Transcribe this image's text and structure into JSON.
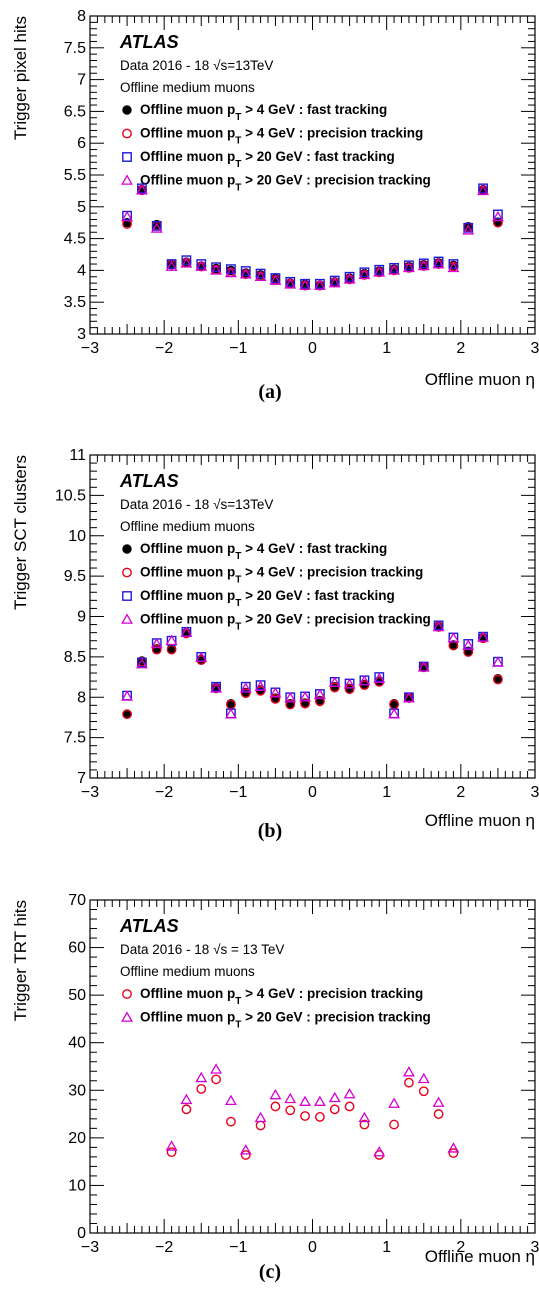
{
  "colors": {
    "black": "#000000",
    "red": "#e8001c",
    "blue": "#1a1ad8",
    "magenta": "#d400d4"
  },
  "chart_data": [
    {
      "type": "scatter",
      "panel": "(a)",
      "atlas_label": "ATLAS",
      "info_prefix": "Data 2016 - 18 ",
      "sqrt_glyph": "√",
      "info_suffix": "s=13TeV",
      "selection": "Offline medium muons",
      "xlabel": "Offline muon η",
      "ylabel": "Trigger pixel hits",
      "xlim": [
        -3,
        3
      ],
      "ylim": [
        3,
        8
      ],
      "yticks": [
        "3",
        "3.5",
        "4",
        "4.5",
        "5",
        "5.5",
        "6",
        "6.5",
        "7",
        "7.5",
        "8"
      ],
      "xticks": [
        "−3",
        "−2",
        "−1",
        "0",
        "1",
        "2",
        "3"
      ],
      "grid": false,
      "legend_position": "top-left",
      "legend": [
        {
          "marker": "filled-circle",
          "color": "#000000",
          "pre": "Offline muon p",
          "sub": "T",
          "post": " > 4 GeV : fast tracking"
        },
        {
          "marker": "open-circle",
          "color": "#e8001c",
          "pre": "Offline muon p",
          "sub": "T",
          "post": " > 4 GeV : precision tracking"
        },
        {
          "marker": "open-square",
          "color": "#1a1ad8",
          "pre": "Offline muon p",
          "sub": "T",
          "post": " > 20 GeV : fast tracking"
        },
        {
          "marker": "open-triangle",
          "color": "#d400d4",
          "pre": "Offline muon p",
          "sub": "T",
          "post": " > 20 GeV : precision tracking"
        }
      ],
      "x": [
        -2.5,
        -2.3,
        -2.1,
        -1.9,
        -1.7,
        -1.5,
        -1.3,
        -1.1,
        -0.9,
        -0.7,
        -0.5,
        -0.3,
        -0.1,
        0.1,
        0.3,
        0.5,
        0.7,
        0.9,
        1.1,
        1.3,
        1.5,
        1.7,
        1.9,
        2.1,
        2.3,
        2.5
      ],
      "series": [
        {
          "marker": "filled-circle",
          "color": "#000000",
          "values": [
            4.75,
            5.27,
            4.72,
            4.1,
            4.13,
            4.07,
            4.03,
            4.0,
            3.96,
            3.93,
            3.87,
            3.8,
            3.78,
            3.77,
            3.82,
            3.88,
            3.95,
            3.99,
            4.02,
            4.06,
            4.09,
            4.12,
            4.08,
            4.69,
            5.27,
            4.76
          ]
        },
        {
          "marker": "open-circle",
          "color": "#e8001c",
          "values": [
            4.73,
            5.26,
            4.7,
            4.09,
            4.12,
            4.06,
            4.01,
            3.97,
            3.94,
            3.91,
            3.85,
            3.79,
            3.76,
            3.76,
            3.81,
            3.86,
            3.93,
            3.97,
            4.0,
            4.04,
            4.07,
            4.1,
            4.06,
            4.68,
            5.26,
            4.75
          ]
        },
        {
          "marker": "open-square",
          "color": "#1a1ad8",
          "values": [
            4.86,
            5.29,
            4.7,
            4.1,
            4.16,
            4.1,
            4.05,
            4.02,
            3.99,
            3.95,
            3.88,
            3.82,
            3.79,
            3.79,
            3.84,
            3.9,
            3.97,
            4.01,
            4.04,
            4.08,
            4.11,
            4.14,
            4.1,
            4.67,
            5.29,
            4.88
          ]
        },
        {
          "marker": "open-triangle",
          "color": "#d400d4",
          "values": [
            4.84,
            5.26,
            4.66,
            4.06,
            4.11,
            4.06,
            4.0,
            3.96,
            3.94,
            3.9,
            3.84,
            3.78,
            3.76,
            3.76,
            3.8,
            3.86,
            3.93,
            3.97,
            4.0,
            4.04,
            4.07,
            4.1,
            4.04,
            4.63,
            5.25,
            4.84
          ]
        }
      ]
    },
    {
      "type": "scatter",
      "panel": "(b)",
      "atlas_label": "ATLAS",
      "info_prefix": "Data 2016 - 18 ",
      "sqrt_glyph": "√",
      "info_suffix": "s=13TeV",
      "selection": "Offline medium muons",
      "xlabel": "Offline muon η",
      "ylabel": "Trigger SCT clusters",
      "xlim": [
        -3,
        3
      ],
      "ylim": [
        7,
        11
      ],
      "yticks": [
        "7",
        "7.5",
        "8",
        "8.5",
        "9",
        "9.5",
        "10",
        "10.5",
        "11"
      ],
      "xticks": [
        "−3",
        "−2",
        "−1",
        "0",
        "1",
        "2",
        "3"
      ],
      "grid": false,
      "legend_position": "top-left",
      "legend": [
        {
          "marker": "filled-circle",
          "color": "#000000",
          "pre": "Offline muon p",
          "sub": "T",
          "post": " > 4 GeV : fast tracking"
        },
        {
          "marker": "open-circle",
          "color": "#e8001c",
          "pre": "Offline muon p",
          "sub": "T",
          "post": " > 4 GeV : precision tracking"
        },
        {
          "marker": "open-square",
          "color": "#1a1ad8",
          "pre": "Offline muon p",
          "sub": "T",
          "post": " > 20 GeV : fast tracking"
        },
        {
          "marker": "open-triangle",
          "color": "#d400d4",
          "pre": "Offline muon p",
          "sub": "T",
          "post": " > 20 GeV : precision tracking"
        }
      ],
      "x": [
        -2.5,
        -2.3,
        -2.1,
        -1.9,
        -1.7,
        -1.5,
        -1.3,
        -1.1,
        -0.9,
        -0.7,
        -0.5,
        -0.3,
        -0.1,
        0.1,
        0.3,
        0.5,
        0.7,
        0.9,
        1.1,
        1.3,
        1.5,
        1.7,
        1.9,
        2.1,
        2.3,
        2.5
      ],
      "series": [
        {
          "marker": "filled-circle",
          "color": "#000000",
          "values": [
            7.79,
            8.45,
            8.6,
            8.6,
            8.8,
            8.47,
            8.12,
            7.92,
            8.06,
            8.09,
            7.99,
            7.92,
            7.93,
            7.96,
            8.13,
            8.11,
            8.16,
            8.2,
            7.92,
            8.0,
            8.38,
            8.88,
            8.65,
            8.57,
            8.74,
            8.23
          ]
        },
        {
          "marker": "open-circle",
          "color": "#e8001c",
          "values": [
            7.79,
            8.44,
            8.59,
            8.59,
            8.79,
            8.46,
            8.11,
            7.91,
            8.05,
            8.08,
            7.98,
            7.91,
            7.92,
            7.95,
            8.12,
            8.1,
            8.15,
            8.19,
            7.91,
            7.99,
            8.37,
            8.87,
            8.64,
            8.56,
            8.73,
            8.22
          ]
        },
        {
          "marker": "open-square",
          "color": "#1a1ad8",
          "values": [
            8.02,
            8.43,
            8.67,
            8.7,
            8.81,
            8.5,
            8.13,
            7.8,
            8.13,
            8.15,
            8.06,
            8.0,
            8.01,
            8.04,
            8.19,
            8.17,
            8.21,
            8.25,
            7.8,
            8.0,
            8.38,
            8.89,
            8.74,
            8.66,
            8.75,
            8.44
          ]
        },
        {
          "marker": "open-triangle",
          "color": "#d400d4",
          "values": [
            8.01,
            8.41,
            8.66,
            8.7,
            8.8,
            8.49,
            8.11,
            7.79,
            8.11,
            8.13,
            8.05,
            7.99,
            8.0,
            8.03,
            8.18,
            8.16,
            8.2,
            8.23,
            7.79,
            7.99,
            8.37,
            8.87,
            8.73,
            8.64,
            8.74,
            8.43
          ]
        }
      ]
    },
    {
      "type": "scatter",
      "panel": "(c)",
      "atlas_label": "ATLAS",
      "info_prefix": "Data 2016 - 18 ",
      "sqrt_glyph": "√",
      "info_suffix": "s = 13 TeV",
      "selection": "Offline medium muons",
      "xlabel": "Offline muon η",
      "ylabel": "Trigger TRT hits",
      "xlim": [
        -3,
        3
      ],
      "ylim": [
        0,
        70
      ],
      "yticks": [
        "0",
        "10",
        "20",
        "30",
        "40",
        "50",
        "60",
        "70"
      ],
      "xticks": [
        "−3",
        "−2",
        "−1",
        "0",
        "1",
        "2",
        "3"
      ],
      "grid": false,
      "legend_position": "top-left",
      "legend": [
        {
          "marker": "open-circle",
          "color": "#e8001c",
          "pre": "Offline muon p",
          "sub": "T",
          "post": " > 4 GeV : precision tracking"
        },
        {
          "marker": "open-triangle",
          "color": "#d400d4",
          "pre": "Offline muon p",
          "sub": "T",
          "post": " > 20 GeV : precision tracking"
        }
      ],
      "x": [
        -1.9,
        -1.7,
        -1.5,
        -1.3,
        -1.1,
        -0.9,
        -0.7,
        -0.5,
        -0.3,
        -0.1,
        0.1,
        0.3,
        0.5,
        0.7,
        0.9,
        1.1,
        1.3,
        1.5,
        1.7,
        1.9
      ],
      "series": [
        {
          "marker": "open-circle",
          "color": "#e8001c",
          "values": [
            17.0,
            26.0,
            30.3,
            32.3,
            23.4,
            16.4,
            22.6,
            26.6,
            25.8,
            24.6,
            24.4,
            26.0,
            26.6,
            22.8,
            16.4,
            22.8,
            31.6,
            29.8,
            25.0,
            16.8
          ]
        },
        {
          "marker": "open-triangle",
          "color": "#d400d4",
          "values": [
            18.2,
            28.0,
            32.6,
            34.4,
            27.8,
            17.4,
            24.2,
            29.0,
            28.2,
            27.6,
            27.6,
            28.4,
            29.2,
            24.2,
            17.0,
            27.2,
            33.8,
            32.4,
            27.4,
            17.8
          ]
        }
      ]
    }
  ]
}
